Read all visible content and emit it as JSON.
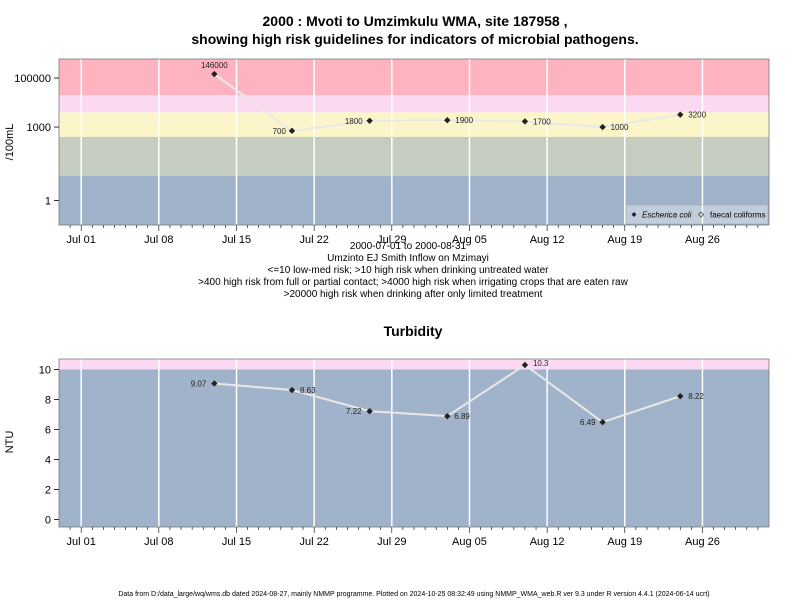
{
  "chart_data": [
    {
      "type": "line",
      "title_line1": "2000 : Mvoti to Umzimkulu WMA, site 187958 ,",
      "title_line2": "showing high risk guidelines for indicators of microbial pathogens.",
      "ylabel": "/100mL",
      "y_scale": "log",
      "ylim": [
        0.1,
        600000
      ],
      "y_ticks": [
        1,
        1000,
        100000
      ],
      "y_tick_labels": [
        "1",
        "1000",
        "100000"
      ],
      "x_ticks": [
        "Jul 01",
        "Jul 08",
        "Jul 15",
        "Jul 22",
        "Jul 29",
        "Aug 05",
        "Aug 12",
        "Aug 19",
        "Aug 26"
      ],
      "x_tick_days": [
        0,
        7,
        14,
        21,
        28,
        35,
        42,
        49,
        56
      ],
      "xlim_days": [
        -2,
        62
      ],
      "bands": [
        {
          "from": 0.1,
          "to": 10,
          "color": "#a1b3ca"
        },
        {
          "from": 10,
          "to": 400,
          "color": "#c5cdc0"
        },
        {
          "from": 400,
          "to": 4000,
          "color": "#fbf5c9"
        },
        {
          "from": 4000,
          "to": 20000,
          "color": "#fcd9f2"
        },
        {
          "from": 20000,
          "to": 600000,
          "color": "#ffb3c0"
        }
      ],
      "series": [
        {
          "name": "Escherica coli",
          "x_days": [
            12,
            19,
            26,
            33,
            40,
            47,
            54
          ],
          "values": [
            146000,
            700,
            1800,
            1900,
            1700,
            1000,
            3200
          ],
          "labels": [
            "146000",
            "700",
            "1800",
            "1900",
            "1700",
            "1000",
            "3200"
          ]
        }
      ],
      "legend": {
        "position": "bottom-right",
        "entries": [
          "Escherica coli",
          "faecal coliforms"
        ]
      },
      "caption_lines": [
        "2000-07-01 to 2000-08-31",
        "Umzinto EJ Smith Inflow on Mzimayi",
        "<=10 low-med risk; >10 high risk when drinking untreated water",
        ">400 high risk from full or partial contact; >4000 high risk when irrigating crops that are eaten raw",
        ">20000 high risk when drinking after only limited treatment"
      ]
    },
    {
      "type": "line",
      "title": "Turbidity",
      "ylabel": "NTU",
      "ylim": [
        -0.5,
        10.7
      ],
      "y_ticks": [
        0,
        2,
        4,
        6,
        8,
        10
      ],
      "x_ticks": [
        "Jul 01",
        "Jul 08",
        "Jul 15",
        "Jul 22",
        "Jul 29",
        "Aug 05",
        "Aug 12",
        "Aug 19",
        "Aug 26"
      ],
      "x_tick_days": [
        0,
        7,
        14,
        21,
        28,
        35,
        42,
        49,
        56
      ],
      "xlim_days": [
        -2,
        62
      ],
      "bands": [
        {
          "from": -0.5,
          "to": 10,
          "color": "#a1b3ca"
        },
        {
          "from": 10,
          "to": 10.7,
          "color": "#fcd9f2"
        }
      ],
      "series": [
        {
          "name": "Turbidity",
          "x_days": [
            12,
            19,
            26,
            33,
            40,
            47,
            54
          ],
          "values": [
            9.07,
            8.63,
            7.22,
            6.89,
            10.3,
            6.49,
            8.22
          ],
          "labels": [
            "9.07",
            "8.63",
            "7.22",
            "6.89",
            "10.3",
            "6.49",
            "8.22"
          ]
        }
      ]
    }
  ],
  "footer": "Data from D:/data_large/wq/wms.db dated 2024-08-27, mainly NMMP programme. Plotted on 2024-10-25 08:32:49 using NMMP_WMA_web.R ver 9.3 under R version 4.4.1 (2024-06-14 ucrt)"
}
